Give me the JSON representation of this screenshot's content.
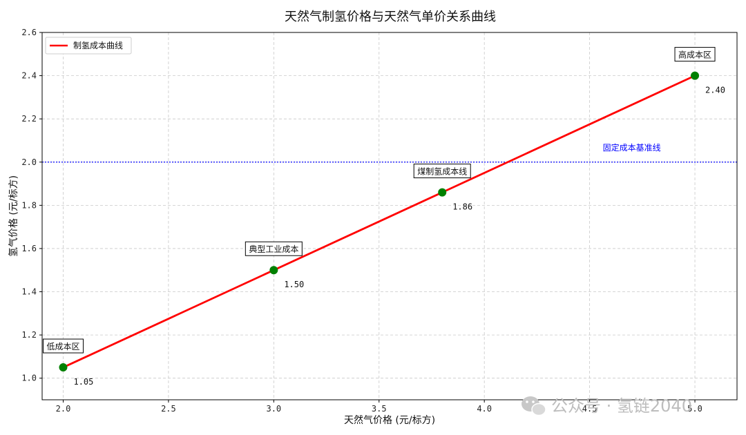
{
  "chart_data": {
    "type": "line",
    "title": "天然气制氢价格与天然气单价关系曲线",
    "xlabel": "天然气价格 (元/标方)",
    "ylabel": "氢气价格 (元/标方)",
    "xlim": [
      1.9,
      5.2
    ],
    "ylim": [
      0.9,
      2.6
    ],
    "x_ticks": [
      2.0,
      2.5,
      3.0,
      3.5,
      4.0,
      4.5,
      5.0
    ],
    "x_tick_labels": [
      "2.0",
      "2.5",
      "3.0",
      "3.5",
      "4.0",
      "4.5",
      "5.0"
    ],
    "y_ticks": [
      1.0,
      1.2,
      1.4,
      1.6,
      1.8,
      2.0,
      2.2,
      2.4,
      2.6
    ],
    "y_tick_labels": [
      "1.0",
      "1.2",
      "1.4",
      "1.6",
      "1.8",
      "2.0",
      "2.2",
      "2.4",
      "2.6"
    ],
    "grid": true,
    "legend_position": "top-left",
    "series": [
      {
        "name": "制氢成本曲线",
        "color": "#ff0000",
        "x": [
          2.0,
          5.0
        ],
        "y": [
          1.05,
          2.4
        ]
      }
    ],
    "points": [
      {
        "x": 2.0,
        "y": 1.05,
        "label": "低成本区",
        "value_label": "1.05"
      },
      {
        "x": 3.0,
        "y": 1.5,
        "label": "典型工业成本",
        "value_label": "1.50"
      },
      {
        "x": 3.8,
        "y": 1.86,
        "label": "煤制氢成本线",
        "value_label": "1.86"
      },
      {
        "x": 5.0,
        "y": 2.4,
        "label": "高成本区",
        "value_label": "2.40"
      }
    ],
    "point_color": "#008000",
    "reference_line": {
      "y": 2.0,
      "label": "固定成本基准线",
      "color": "#0000ff",
      "style": "dotted"
    }
  },
  "watermark": {
    "icon": "wechat-icon",
    "text": "公众号 · 氢链2040"
  }
}
